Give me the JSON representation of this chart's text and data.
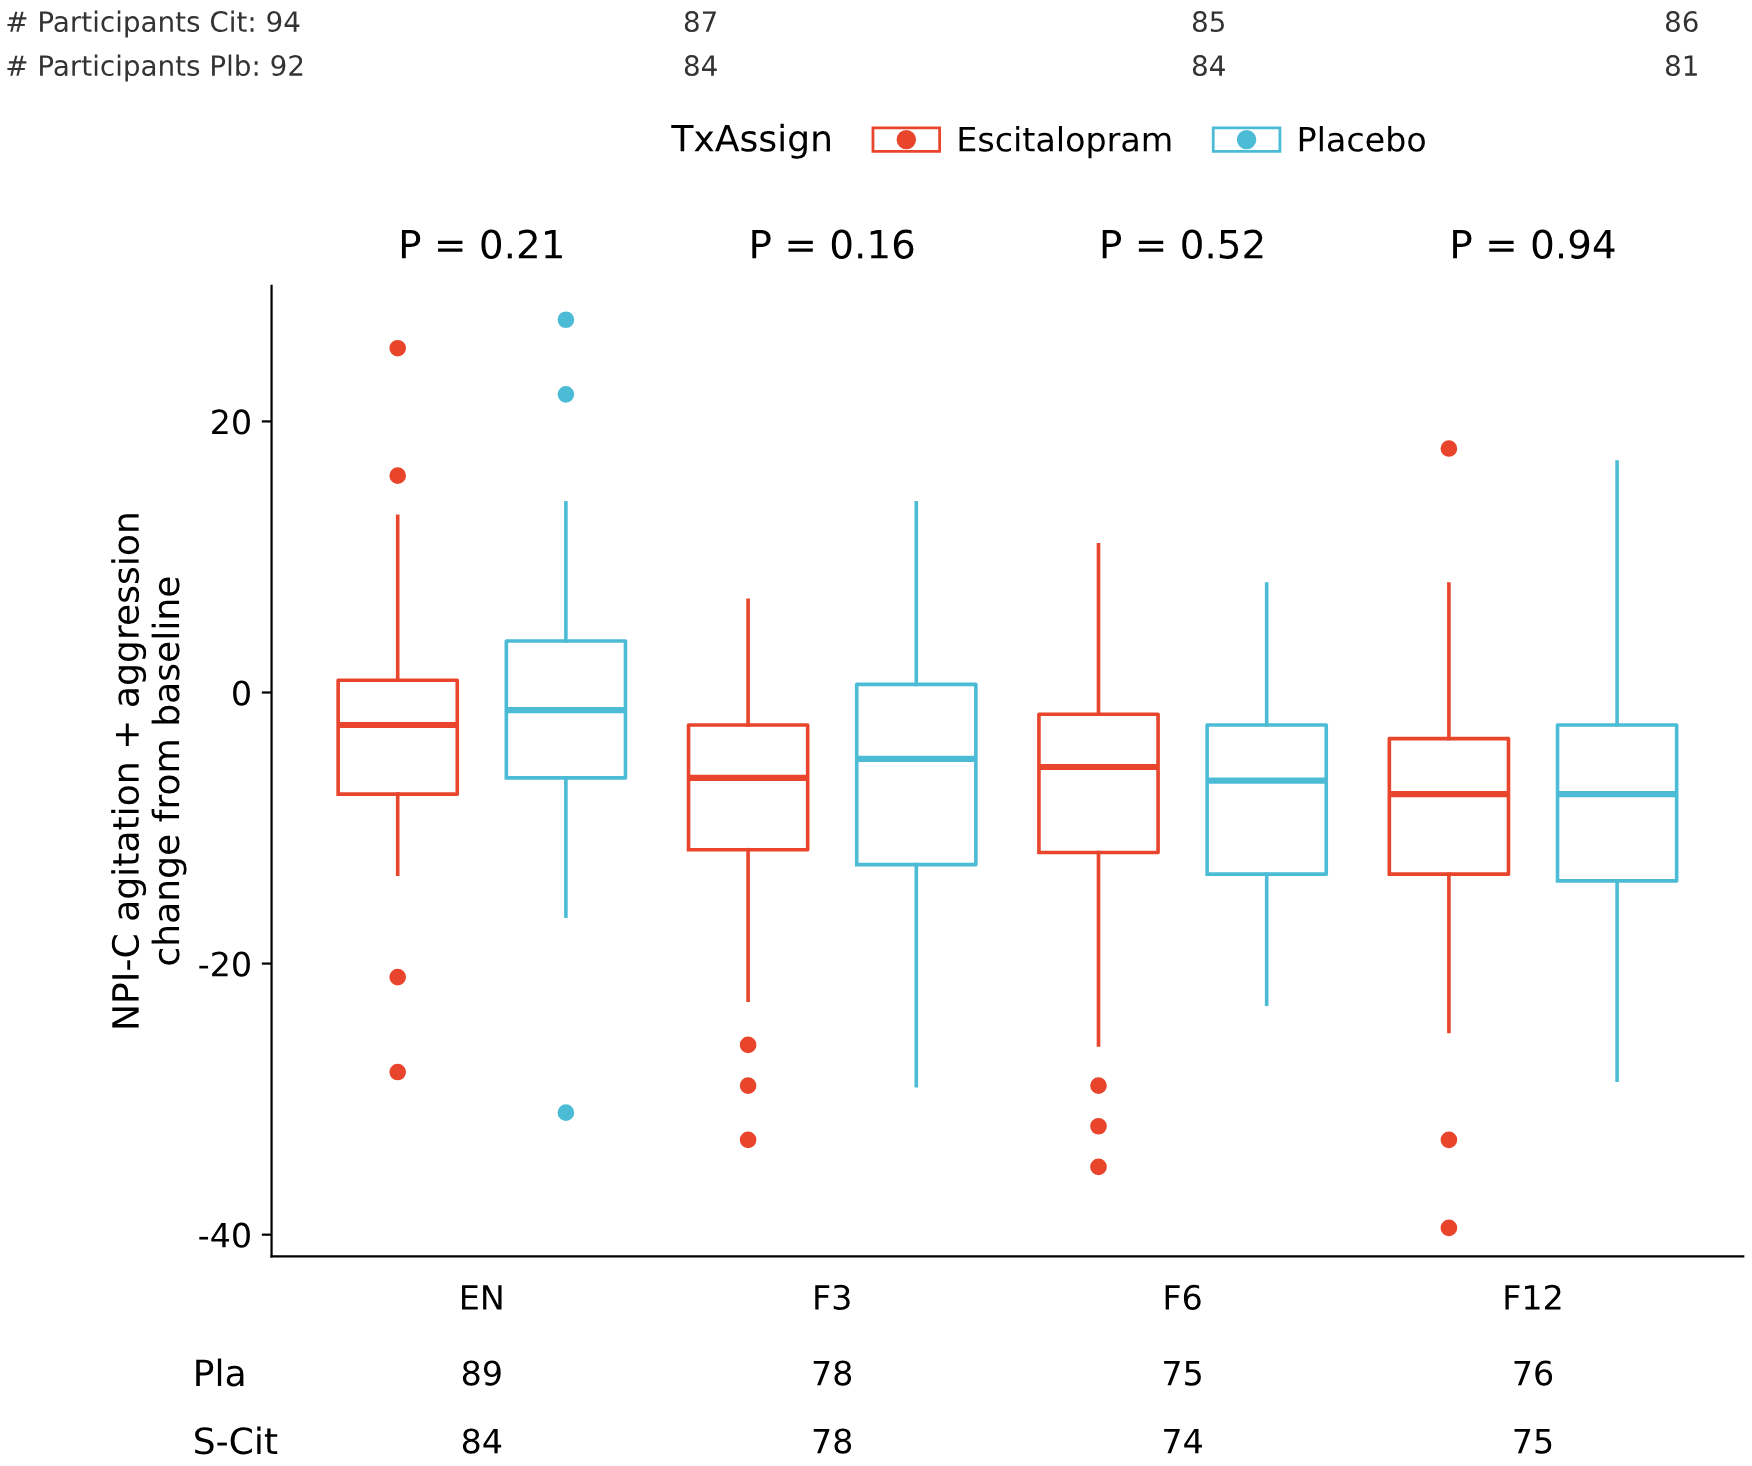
{
  "chart_data": {
    "type": "box",
    "ylabel": "NPI-C agitation + aggression\nchange from baseline",
    "legend_title": "TxAssign",
    "legend": "top",
    "grid": false,
    "categories": [
      "EN",
      "F3",
      "F6",
      "F12"
    ],
    "ylim": [
      -41.6,
      30
    ],
    "yticks": [
      -40,
      -20,
      0,
      20
    ],
    "series": [
      {
        "name": "Escitalopram",
        "color": "#e8452c",
        "boxes": [
          {
            "low": -13.4,
            "q1": -7.5,
            "median": -2.4,
            "q3": 0.9,
            "high": 13,
            "outliers": [
              16,
              25.4,
              -21,
              -28
            ]
          },
          {
            "low": -22.7,
            "q1": -11.6,
            "median": -6.3,
            "q3": -2.4,
            "high": 6.8,
            "outliers": [
              -26,
              -29,
              -33
            ]
          },
          {
            "low": -26,
            "q1": -11.8,
            "median": -5.5,
            "q3": -1.6,
            "high": 10.9,
            "outliers": [
              -29,
              -32,
              -35
            ]
          },
          {
            "low": -25,
            "q1": -13.4,
            "median": -7.5,
            "q3": -3.4,
            "high": 8,
            "outliers": [
              18,
              -33,
              -39.5
            ]
          }
        ]
      },
      {
        "name": "Placebo",
        "color": "#4cbcd6",
        "boxes": [
          {
            "low": -16.5,
            "q1": -6.3,
            "median": -1.3,
            "q3": 3.8,
            "high": 14,
            "outliers": [
              22,
              27.5,
              -31
            ]
          },
          {
            "low": -29,
            "q1": -12.7,
            "median": -4.9,
            "q3": 0.6,
            "high": 14
          },
          {
            "low": -23,
            "q1": -13.4,
            "median": -6.5,
            "q3": -2.4,
            "high": 8
          },
          {
            "low": -28.6,
            "q1": -13.9,
            "median": -7.5,
            "q3": -2.4,
            "high": 17
          }
        ]
      }
    ],
    "annotations": [
      "# Participants Cit: 94",
      "87",
      "85",
      "86",
      "# Participants Plb: 92",
      "84",
      "84",
      "81",
      "P = 0.21",
      "P = 0.16",
      "P = 0.52",
      "P = 0.94",
      "Pla",
      "89",
      "78",
      "75",
      "76",
      "S-Cit",
      "84",
      "78",
      "74",
      "75"
    ]
  }
}
